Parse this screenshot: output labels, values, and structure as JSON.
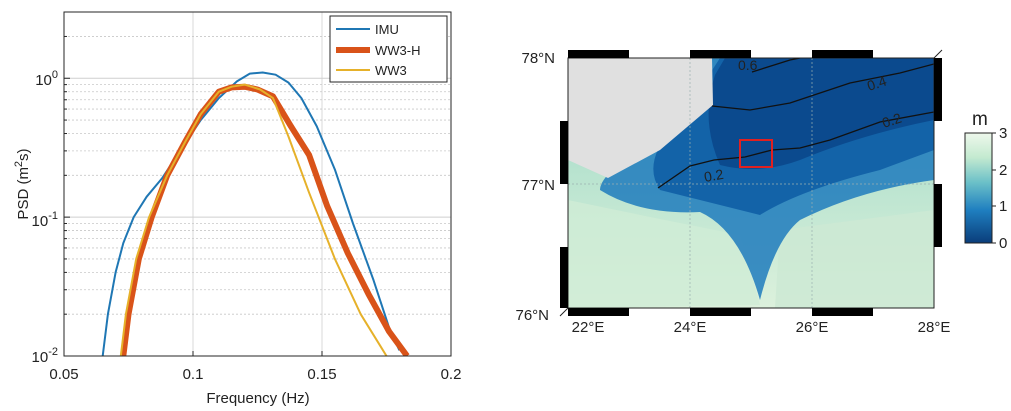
{
  "chart_data": [
    {
      "type": "line",
      "xlabel": "Frequency (Hz)",
      "ylabel_main": "PSD (m",
      "ylabel_sup": "2",
      "ylabel_end": "s)",
      "xlim": [
        0.05,
        0.2
      ],
      "ylim": [
        0.01,
        3
      ],
      "yscale": "log",
      "grid": true,
      "legend_position": "top-right",
      "xticks": [
        0.05,
        0.1,
        0.15,
        0.2
      ],
      "xtick_labels": [
        "0.05",
        "0.1",
        "0.15",
        "0.2"
      ],
      "ytick_labels": {
        "e0": {
          "base": "10",
          "exp": "0"
        },
        "em1": {
          "base": "10",
          "exp": "-1"
        },
        "em2": {
          "base": "10",
          "exp": "-2"
        }
      },
      "series": [
        {
          "name": "IMU",
          "color": "#1f77b4",
          "width": 2,
          "x": [
            0.065,
            0.067,
            0.07,
            0.073,
            0.077,
            0.082,
            0.088,
            0.095,
            0.103,
            0.11,
            0.117,
            0.122,
            0.127,
            0.132,
            0.137,
            0.142,
            0.148,
            0.155,
            0.162,
            0.17,
            0.176,
            0.18
          ],
          "y": [
            0.01,
            0.02,
            0.04,
            0.065,
            0.1,
            0.14,
            0.19,
            0.3,
            0.5,
            0.72,
            0.95,
            1.08,
            1.1,
            1.06,
            0.93,
            0.72,
            0.45,
            0.22,
            0.09,
            0.035,
            0.016,
            0.011
          ]
        },
        {
          "name": "WW3-H",
          "color": "#d95319",
          "width": 6,
          "x": [
            0.073,
            0.075,
            0.079,
            0.084,
            0.09,
            0.097,
            0.103,
            0.11,
            0.115,
            0.12,
            0.125,
            0.131,
            0.138,
            0.145,
            0.152,
            0.16,
            0.168,
            0.176,
            0.183
          ],
          "y": [
            0.01,
            0.02,
            0.05,
            0.1,
            0.2,
            0.35,
            0.55,
            0.8,
            0.86,
            0.87,
            0.83,
            0.74,
            0.45,
            0.28,
            0.12,
            0.055,
            0.028,
            0.015,
            0.01
          ]
        },
        {
          "name": "WW3",
          "color": "#e6b12a",
          "width": 2,
          "x": [
            0.072,
            0.074,
            0.078,
            0.083,
            0.09,
            0.097,
            0.103,
            0.11,
            0.115,
            0.12,
            0.126,
            0.131,
            0.137,
            0.145,
            0.155,
            0.165,
            0.175
          ],
          "y": [
            0.01,
            0.02,
            0.05,
            0.1,
            0.2,
            0.35,
            0.55,
            0.8,
            0.87,
            0.9,
            0.83,
            0.72,
            0.38,
            0.15,
            0.05,
            0.02,
            0.01
          ]
        }
      ]
    },
    {
      "type": "heatmap",
      "xlim": [
        22,
        28
      ],
      "ylim": [
        76,
        78
      ],
      "xtick_labels": [
        "22°E",
        "24°E",
        "26°E",
        "28°E"
      ],
      "ytick_labels": [
        "76°N",
        "77°N",
        "78°N"
      ],
      "colorbar": {
        "title": "m",
        "range": [
          0,
          3
        ],
        "ticks": [
          "0",
          "1",
          "2",
          "3"
        ],
        "colors": [
          "#0a3d7a",
          "#1f7fc0",
          "#6bc0c8",
          "#c4ead0",
          "#eef8ec"
        ]
      },
      "contour_labels": [
        "0.6",
        "0.4",
        "0.2",
        "0.2"
      ],
      "land_color": "#e0e0e0",
      "highlight_box_color": "#e02020"
    }
  ]
}
